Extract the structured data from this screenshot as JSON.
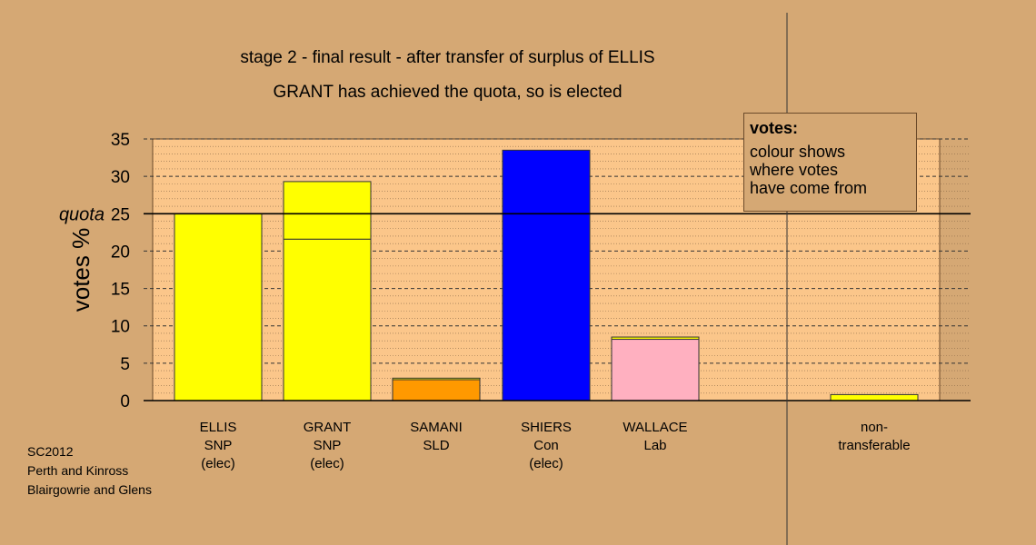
{
  "title_line1": "stage 2 - final result - after transfer of surplus of ELLIS",
  "title_line2": "GRANT has achieved the quota, so is elected",
  "footer": [
    "SC2012",
    "Perth and Kinross",
    "Blairgowrie and Glens"
  ],
  "legend": {
    "title": "votes:",
    "lines": [
      "colour shows",
      "where votes",
      "have come from"
    ]
  },
  "chart_data": {
    "type": "bar",
    "stacked": true,
    "ylabel": "votes %",
    "ylim": [
      0,
      35
    ],
    "yticks": [
      "0",
      "5",
      "10",
      "15",
      "20",
      "25",
      "30",
      "35"
    ],
    "quota": {
      "label": "quota",
      "value": 25
    },
    "grid": true,
    "categories": [
      {
        "lines": [
          "ELLIS",
          "SNP",
          "(elec)"
        ]
      },
      {
        "lines": [
          "GRANT",
          "SNP",
          "(elec)"
        ]
      },
      {
        "lines": [
          "SAMANI",
          "SLD"
        ]
      },
      {
        "lines": [
          "SHIERS",
          "Con",
          "(elec)"
        ]
      },
      {
        "lines": [
          "WALLACE",
          "Lab"
        ]
      },
      {
        "lines": [
          "non-",
          "transferable"
        ]
      }
    ],
    "bars": [
      {
        "segments": [
          {
            "value": 25.0,
            "color": "#ffff00"
          }
        ]
      },
      {
        "segments": [
          {
            "value": 21.6,
            "color": "#ffff00"
          },
          {
            "value": 7.7,
            "color": "#ffff00"
          }
        ]
      },
      {
        "segments": [
          {
            "value": 2.8,
            "color": "#ff9900"
          },
          {
            "value": 0.2,
            "color": "#ffff00"
          }
        ]
      },
      {
        "segments": [
          {
            "value": 33.5,
            "color": "#0000ff"
          }
        ]
      },
      {
        "segments": [
          {
            "value": 8.2,
            "color": "#ffb0c0"
          },
          {
            "value": 0.3,
            "color": "#ffff00"
          }
        ]
      },
      {
        "segments": [
          {
            "value": 0.8,
            "color": "#ffff00"
          }
        ]
      }
    ]
  }
}
